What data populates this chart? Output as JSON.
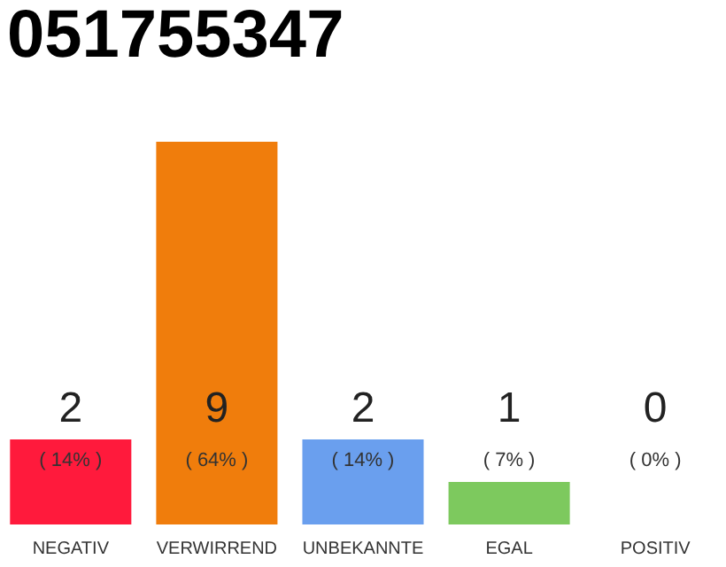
{
  "chart_data": {
    "type": "bar",
    "title": "051755347",
    "categories": [
      "NEGATIV",
      "VERWIRREND",
      "UNBEKANNTE",
      "EGAL",
      "POSITIV"
    ],
    "values": [
      2,
      9,
      2,
      1,
      0
    ],
    "colors": [
      "#ff1a3c",
      "#f07d0c",
      "#6a9fee",
      "#7dc95e",
      "#22aa44"
    ],
    "ylim": [
      0,
      9
    ],
    "tick_labels": "x",
    "grid": false,
    "data_labels": true,
    "annotations": [
      "( 14% )",
      "( 64% )",
      "( 14% )",
      "( 7% )",
      "( 0% )"
    ]
  }
}
